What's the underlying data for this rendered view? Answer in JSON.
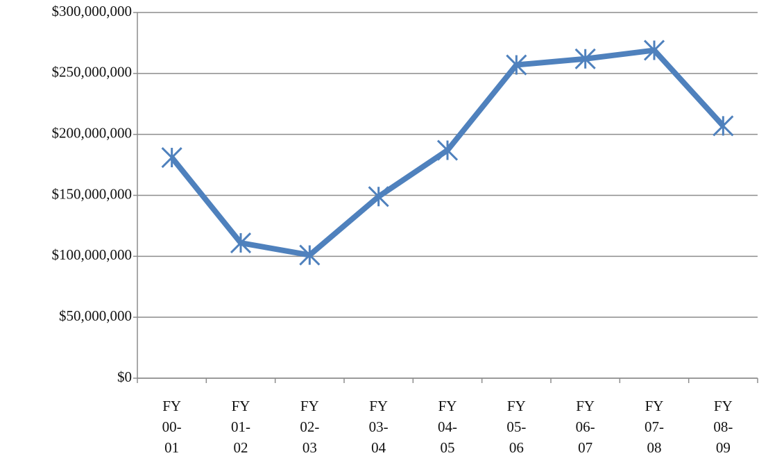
{
  "chart_data": {
    "type": "line",
    "categories": [
      "FY 00-01",
      "FY 01-02",
      "FY 02-03",
      "FY 03-04",
      "FY 04-05",
      "FY 05-06",
      "FY 06-07",
      "FY 07-08",
      "FY 08-09"
    ],
    "values": [
      181000000,
      111000000,
      101000000,
      149000000,
      187000000,
      257000000,
      262000000,
      269000000,
      207000000
    ],
    "color": "#4f81bd",
    "ylim": [
      0,
      300000000
    ],
    "yticks": [
      {
        "value": 0,
        "label": "$0"
      },
      {
        "value": 50000000,
        "label": "$50,000,000"
      },
      {
        "value": 100000000,
        "label": "$100,000,000"
      },
      {
        "value": 150000000,
        "label": "$150,000,000"
      },
      {
        "value": 200000000,
        "label": "$200,000,000"
      },
      {
        "value": 250000000,
        "label": "$250,000,000"
      },
      {
        "value": 300000000,
        "label": "$300,000,000"
      }
    ],
    "grid": true
  }
}
